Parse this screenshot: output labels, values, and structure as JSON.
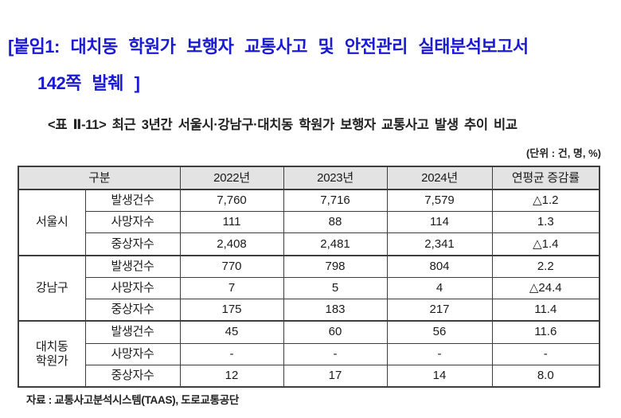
{
  "title": {
    "line1": "[붙임1: 대치동 학원가 보행자 교통사고 및 안전관리 실태분석보고서",
    "line2": "142쪽 발췌 ]"
  },
  "caption": "<표 Ⅱ-11> 최근 3년간 서울시·강남구·대치동 학원가 보행자 교통사고 발생 추이 비교",
  "unit_note": "(단위 : 건, 명, %)",
  "source": "자료 : 교통사고분석시스템(TAAS), 도로교통공단",
  "colors": {
    "title_blue": "#1a1ad2",
    "header_bg": "#e3e3e3",
    "border": "#3d3d3d"
  },
  "chart_data": {
    "type": "table",
    "columns": [
      "구분",
      "2022년",
      "2023년",
      "2024년",
      "연평균 증감률"
    ],
    "groups": [
      {
        "name": "서울시",
        "name_lines": [
          "서울시"
        ],
        "rows": [
          {
            "metric": "발생건수",
            "values": [
              "7,760",
              "7,716",
              "7,579",
              "△1.2"
            ]
          },
          {
            "metric": "사망자수",
            "values": [
              "111",
              "88",
              "114",
              "1.3"
            ]
          },
          {
            "metric": "중상자수",
            "values": [
              "2,408",
              "2,481",
              "2,341",
              "△1.4"
            ]
          }
        ]
      },
      {
        "name": "강남구",
        "name_lines": [
          "강남구"
        ],
        "rows": [
          {
            "metric": "발생건수",
            "values": [
              "770",
              "798",
              "804",
              "2.2"
            ]
          },
          {
            "metric": "사망자수",
            "values": [
              "7",
              "5",
              "4",
              "△24.4"
            ]
          },
          {
            "metric": "중상자수",
            "values": [
              "175",
              "183",
              "217",
              "11.4"
            ]
          }
        ]
      },
      {
        "name": "대치동 학원가",
        "name_lines": [
          "대치동",
          "학원가"
        ],
        "rows": [
          {
            "metric": "발생건수",
            "values": [
              "45",
              "60",
              "56",
              "11.6"
            ]
          },
          {
            "metric": "사망자수",
            "values": [
              "-",
              "-",
              "-",
              "-"
            ]
          },
          {
            "metric": "중상자수",
            "values": [
              "12",
              "17",
              "14",
              "8.0"
            ]
          }
        ]
      }
    ]
  }
}
